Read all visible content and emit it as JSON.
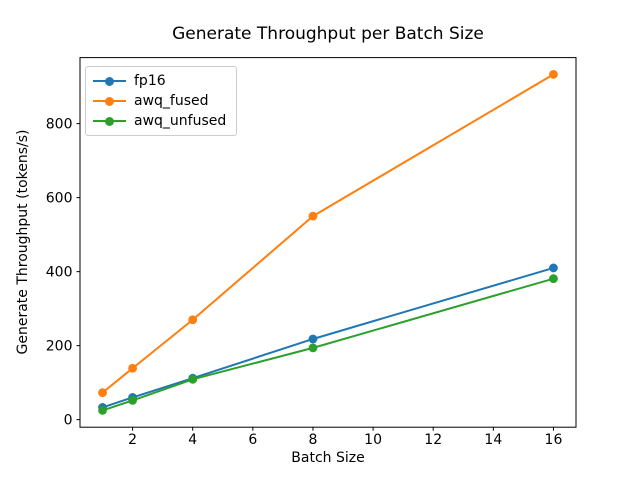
{
  "figure": {
    "background": "#ffffff",
    "text_color": "#000000",
    "axis_color": "#000000",
    "legend_border_color": "#cccccc"
  },
  "chart_data": {
    "type": "line",
    "title": "Generate Throughput per Batch Size",
    "xlabel": "Batch Size",
    "ylabel": "Generate Throughput (tokens/s)",
    "x": [
      1,
      2,
      4,
      8,
      16
    ],
    "series": [
      {
        "name": "fp16",
        "color": "#1f77b4",
        "values": [
          33,
          60,
          112,
          218,
          410
        ]
      },
      {
        "name": "awq_fused",
        "color": "#ff7f0e",
        "values": [
          73,
          139,
          270,
          550,
          933
        ]
      },
      {
        "name": "awq_unfused",
        "color": "#2ca02c",
        "values": [
          25,
          52,
          109,
          194,
          381
        ]
      }
    ],
    "xlim": [
      0.25,
      16.75
    ],
    "ylim": [
      -20.4,
      978.4
    ],
    "xticks": [
      2,
      4,
      6,
      8,
      10,
      12,
      14,
      16
    ],
    "xtick_labels": [
      "2",
      "4",
      "6",
      "8",
      "10",
      "12",
      "14",
      "16"
    ],
    "yticks": [
      0,
      200,
      400,
      600,
      800
    ],
    "ytick_labels": [
      "0",
      "200",
      "400",
      "600",
      "800"
    ],
    "legend_position": "upper-left",
    "grid": false,
    "marker": "o"
  }
}
